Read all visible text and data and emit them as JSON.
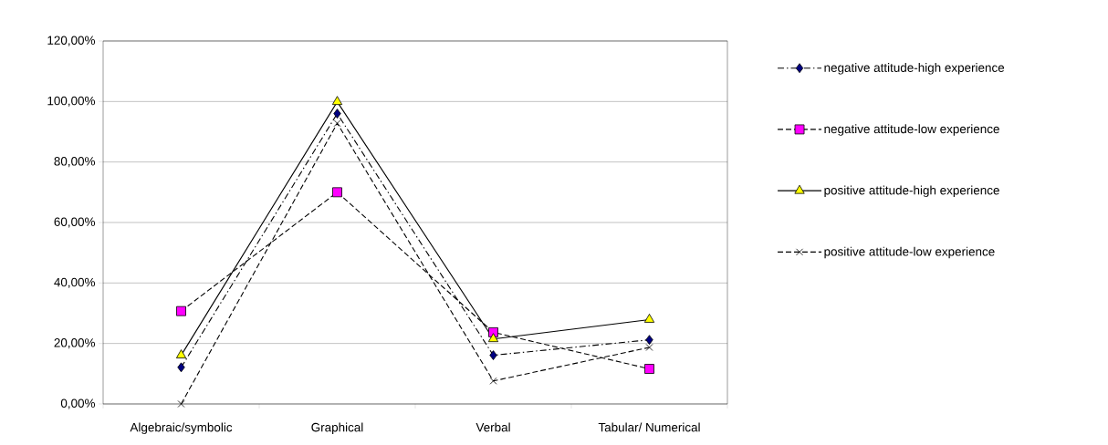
{
  "chart_data": {
    "type": "line",
    "categories": [
      "Algebraic/symbolic",
      "Graphical",
      "Verbal",
      "Tabular/ Numerical"
    ],
    "series": [
      {
        "name": "negative attitude-high experience",
        "color": "#000080",
        "marker": "diamond",
        "line_style": "dashdot",
        "values": [
          12.1,
          96.0,
          16.1,
          21.2
        ]
      },
      {
        "name": "negative attitude-low experience",
        "color": "#ff00ff",
        "marker": "square",
        "line_style": "dashed",
        "values": [
          30.7,
          70.0,
          23.7,
          11.6
        ]
      },
      {
        "name": "positive attitude-high experience",
        "color": "#ffff00",
        "marker": "triangle",
        "line_style": "solid",
        "values": [
          16.1,
          99.9,
          21.5,
          27.9
        ]
      },
      {
        "name": "positive attitude-low experience",
        "color": "#000000",
        "marker": "cross",
        "line_style": "dashed",
        "values": [
          0,
          92.8,
          7.6,
          18.7
        ]
      }
    ],
    "ylim": [
      0,
      120
    ],
    "yticks": [
      {
        "value": 0,
        "label": "0,00%"
      },
      {
        "value": 20,
        "label": "20,00%"
      },
      {
        "value": 40,
        "label": "40,00%"
      },
      {
        "value": 60,
        "label": "60,00%"
      },
      {
        "value": 80,
        "label": "80,00%"
      },
      {
        "value": 100,
        "label": "100,00%"
      },
      {
        "value": 120,
        "label": "120,00%"
      }
    ],
    "grid": "y",
    "legend": "right"
  }
}
